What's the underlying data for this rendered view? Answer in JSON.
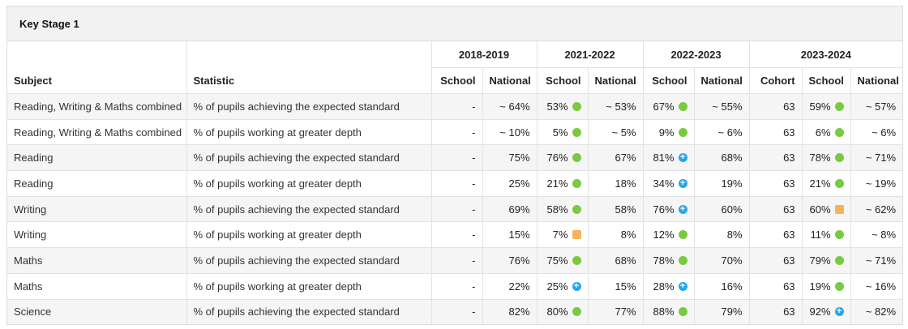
{
  "panel": {
    "title": "Key Stage 1"
  },
  "header": {
    "subject": "Subject",
    "statistic": "Statistic",
    "years": [
      {
        "label": "2018-2019",
        "cols": [
          "School",
          "National"
        ]
      },
      {
        "label": "2021-2022",
        "cols": [
          "School",
          "National"
        ]
      },
      {
        "label": "2022-2023",
        "cols": [
          "School",
          "National"
        ]
      },
      {
        "label": "2023-2024",
        "cols": [
          "Cohort",
          "School",
          "National"
        ]
      }
    ]
  },
  "indicator_colors": {
    "green": "#7ac943",
    "blue": "#22a7f0",
    "orange": "#f5b25b"
  },
  "rows": [
    {
      "subject": "Reading, Writing & Maths combined",
      "statistic": "% of pupils achieving the expected standard",
      "y1819": {
        "school": "-",
        "national": "~ 64%"
      },
      "y2122": {
        "school": "53%",
        "school_mark": "green",
        "national": "~ 53%"
      },
      "y2223": {
        "school": "67%",
        "school_mark": "green",
        "national": "~ 55%"
      },
      "y2324": {
        "cohort": "63",
        "school": "59%",
        "school_mark": "green",
        "national": "~ 57%"
      }
    },
    {
      "subject": "Reading, Writing & Maths combined",
      "statistic": "% of pupils working at greater depth",
      "y1819": {
        "school": "-",
        "national": "~ 10%"
      },
      "y2122": {
        "school": "5%",
        "school_mark": "green",
        "national": "~ 5%"
      },
      "y2223": {
        "school": "9%",
        "school_mark": "green",
        "national": "~ 6%"
      },
      "y2324": {
        "cohort": "63",
        "school": "6%",
        "school_mark": "green",
        "national": "~ 6%"
      }
    },
    {
      "subject": "Reading",
      "statistic": "% of pupils achieving the expected standard",
      "y1819": {
        "school": "-",
        "national": "75%"
      },
      "y2122": {
        "school": "76%",
        "school_mark": "green",
        "national": "67%"
      },
      "y2223": {
        "school": "81%",
        "school_mark": "blue",
        "national": "68%"
      },
      "y2324": {
        "cohort": "63",
        "school": "78%",
        "school_mark": "green",
        "national": "~ 71%"
      }
    },
    {
      "subject": "Reading",
      "statistic": "% of pupils working at greater depth",
      "y1819": {
        "school": "-",
        "national": "25%"
      },
      "y2122": {
        "school": "21%",
        "school_mark": "green",
        "national": "18%"
      },
      "y2223": {
        "school": "34%",
        "school_mark": "blue",
        "national": "19%"
      },
      "y2324": {
        "cohort": "63",
        "school": "21%",
        "school_mark": "green",
        "national": "~ 19%"
      }
    },
    {
      "subject": "Writing",
      "statistic": "% of pupils achieving the expected standard",
      "y1819": {
        "school": "-",
        "national": "69%"
      },
      "y2122": {
        "school": "58%",
        "school_mark": "green",
        "national": "58%"
      },
      "y2223": {
        "school": "76%",
        "school_mark": "blue",
        "national": "60%"
      },
      "y2324": {
        "cohort": "63",
        "school": "60%",
        "school_mark": "orange",
        "national": "~ 62%"
      }
    },
    {
      "subject": "Writing",
      "statistic": "% of pupils working at greater depth",
      "y1819": {
        "school": "-",
        "national": "15%"
      },
      "y2122": {
        "school": "7%",
        "school_mark": "orange",
        "national": "8%"
      },
      "y2223": {
        "school": "12%",
        "school_mark": "green",
        "national": "8%"
      },
      "y2324": {
        "cohort": "63",
        "school": "11%",
        "school_mark": "green",
        "national": "~ 8%"
      }
    },
    {
      "subject": "Maths",
      "statistic": "% of pupils achieving the expected standard",
      "y1819": {
        "school": "-",
        "national": "76%"
      },
      "y2122": {
        "school": "75%",
        "school_mark": "green",
        "national": "68%"
      },
      "y2223": {
        "school": "78%",
        "school_mark": "green",
        "national": "70%"
      },
      "y2324": {
        "cohort": "63",
        "school": "79%",
        "school_mark": "green",
        "national": "~ 71%"
      }
    },
    {
      "subject": "Maths",
      "statistic": "% of pupils working at greater depth",
      "y1819": {
        "school": "-",
        "national": "22%"
      },
      "y2122": {
        "school": "25%",
        "school_mark": "blue",
        "national": "15%"
      },
      "y2223": {
        "school": "28%",
        "school_mark": "blue",
        "national": "16%"
      },
      "y2324": {
        "cohort": "63",
        "school": "19%",
        "school_mark": "green",
        "national": "~ 16%"
      }
    },
    {
      "subject": "Science",
      "statistic": "% of pupils achieving the expected standard",
      "y1819": {
        "school": "-",
        "national": "82%"
      },
      "y2122": {
        "school": "80%",
        "school_mark": "green",
        "national": "77%"
      },
      "y2223": {
        "school": "88%",
        "school_mark": "green",
        "national": "79%"
      },
      "y2324": {
        "cohort": "63",
        "school": "92%",
        "school_mark": "blue",
        "national": "~ 82%"
      }
    }
  ]
}
